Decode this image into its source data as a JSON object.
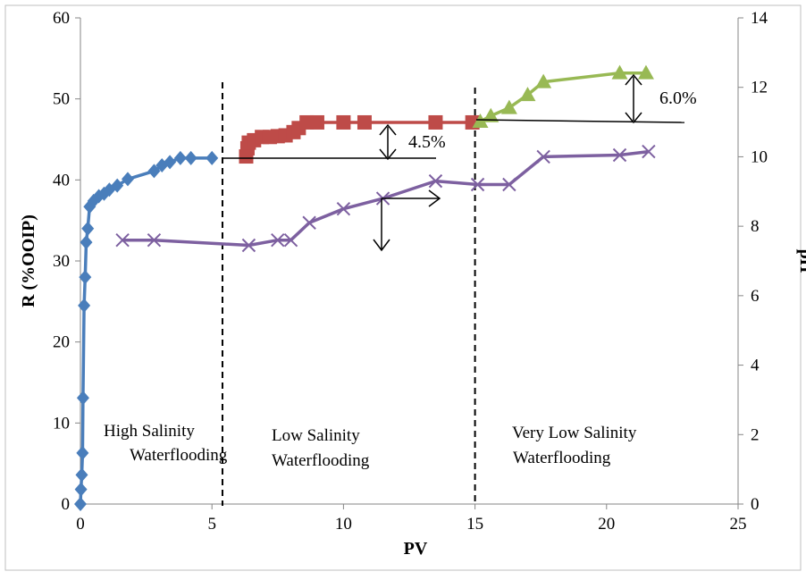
{
  "chart_data": {
    "type": "line",
    "xlabel": "PV",
    "ylabel": "R (%OOIP)",
    "y2label": "pH",
    "xlim": [
      0,
      25
    ],
    "ylim": [
      0,
      60
    ],
    "y2lim": [
      0,
      14
    ],
    "xticks": [
      0,
      5,
      10,
      15,
      20,
      25
    ],
    "yticks": [
      0,
      10,
      20,
      30,
      40,
      50,
      60
    ],
    "y2ticks": [
      0,
      2,
      4,
      6,
      8,
      10,
      12,
      14
    ],
    "grid": false,
    "legend": "none",
    "series": [
      {
        "axis": "left",
        "color": "#4a7ebb",
        "marker": "diamond",
        "x": [
          0,
          0.02,
          0.05,
          0.08,
          0.1,
          0.14,
          0.18,
          0.22,
          0.28,
          0.35,
          0.5,
          0.7,
          0.9,
          1.1,
          1.4,
          1.8,
          2.8,
          3.1,
          3.4,
          3.8,
          4.2,
          5.0
        ],
        "y": [
          0,
          1.8,
          3.6,
          6.3,
          13.1,
          24.5,
          28.0,
          32.3,
          34.0,
          36.7,
          37.4,
          38.0,
          38.3,
          38.8,
          39.3,
          40.1,
          41.1,
          41.8,
          42.2,
          42.7,
          42.7,
          42.7
        ]
      },
      {
        "axis": "left",
        "color": "#be4b48",
        "marker": "square",
        "x": [
          6.3,
          6.35,
          6.4,
          6.6,
          6.9,
          7.2,
          7.5,
          7.8,
          8.1,
          8.3,
          8.6,
          9.0,
          10.0,
          10.8,
          13.5,
          14.9
        ],
        "y": [
          42.9,
          43.9,
          44.6,
          44.9,
          45.3,
          45.3,
          45.4,
          45.5,
          45.9,
          46.4,
          47.1,
          47.1,
          47.1,
          47.1,
          47.1,
          47.1
        ]
      },
      {
        "axis": "left",
        "color": "#98b954",
        "marker": "triangle",
        "x": [
          15.2,
          15.6,
          16.3,
          17.0,
          17.6,
          20.5,
          21.5
        ],
        "y": [
          47.2,
          47.9,
          48.9,
          50.5,
          52.1,
          53.2,
          53.2
        ]
      },
      {
        "axis": "right",
        "color": "#7d60a0",
        "marker": "x",
        "x": [
          1.6,
          2.8,
          6.4,
          7.5,
          8.0,
          8.7,
          10.0,
          11.5,
          13.5,
          15.1,
          16.3,
          17.6,
          20.5,
          21.6
        ],
        "y": [
          7.6,
          7.6,
          7.45,
          7.6,
          7.6,
          8.1,
          8.5,
          8.8,
          9.3,
          9.2,
          9.2,
          10.0,
          10.05,
          10.15
        ]
      }
    ],
    "regions": [
      {
        "id": "high",
        "line1": "High Salinity",
        "line2": "Waterflooding",
        "boundary_x": 5.4
      },
      {
        "id": "low",
        "line1": "Low Salinity",
        "line2": "Waterflooding",
        "boundary_x": 15.0
      },
      {
        "id": "vlow",
        "line1": "Very Low Salinity",
        "line2": "Waterflooding"
      }
    ],
    "annotations": {
      "increment_1": "4.5%",
      "increment_2": "6.0%"
    }
  }
}
